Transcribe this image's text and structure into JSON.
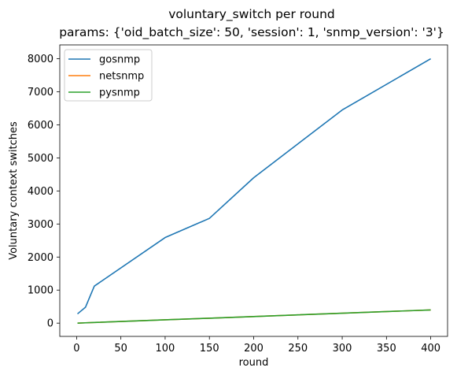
{
  "chart_data": {
    "type": "line",
    "title_line1": "voluntary_switch per round",
    "title_line2": "params: {'oid_batch_size': 50, 'session': 1, 'snmp_version': '3'}",
    "xlabel": "round",
    "ylabel": "Voluntary context switches",
    "xlim": [
      -19,
      419
    ],
    "ylim": [
      -401,
      8419
    ],
    "xticks": [
      0,
      50,
      100,
      150,
      200,
      250,
      300,
      350,
      400
    ],
    "yticks": [
      0,
      1000,
      2000,
      3000,
      4000,
      5000,
      6000,
      7000,
      8000
    ],
    "grid": false,
    "legend_position": "top-left",
    "series": [
      {
        "name": "gosnmp",
        "color": "#1f77b4",
        "x": [
          1,
          10,
          20,
          100,
          150,
          200,
          300,
          400
        ],
        "y": [
          280,
          480,
          1120,
          2590,
          3170,
          4400,
          6450,
          8000
        ]
      },
      {
        "name": "netsnmp",
        "color": "#ff7f0e",
        "x": [
          1,
          10,
          20,
          100,
          150,
          200,
          300,
          400
        ],
        "y": [
          1,
          10,
          20,
          100,
          150,
          200,
          300,
          400
        ]
      },
      {
        "name": "pysnmp",
        "color": "#2ca02c",
        "x": [
          1,
          10,
          20,
          100,
          150,
          200,
          300,
          400
        ],
        "y": [
          1,
          10,
          20,
          100,
          150,
          200,
          300,
          400
        ]
      }
    ]
  }
}
